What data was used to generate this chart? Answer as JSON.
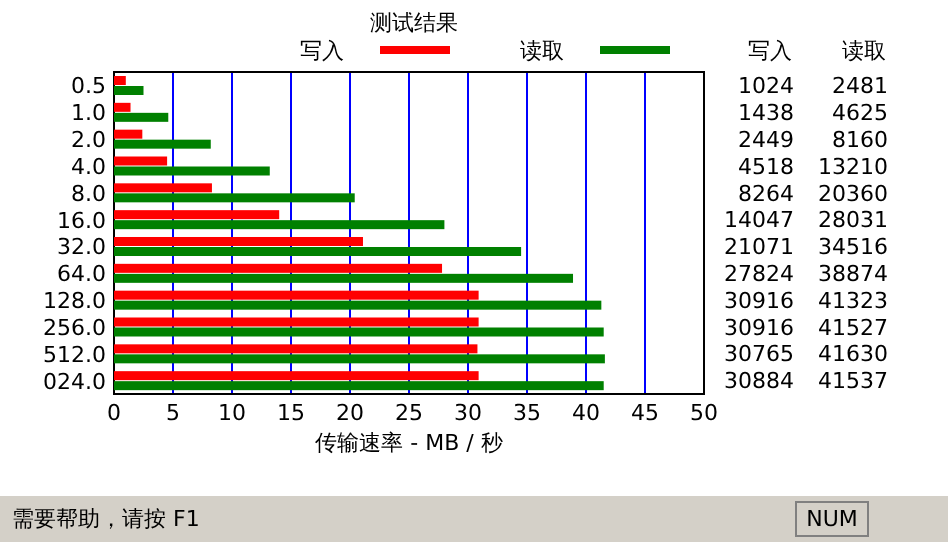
{
  "chart_data": [
    {
      "type": "bar",
      "orientation": "horizontal",
      "title": "测试结果",
      "xlabel": "传输速率 - MB / 秒",
      "categories": [
        "0.5",
        "1.0",
        "2.0",
        "4.0",
        "8.0",
        "16.0",
        "32.0",
        "64.0",
        "128.0",
        "256.0",
        "512.0",
        "024.0"
      ],
      "series": [
        {
          "name": "写入",
          "color": "#ff0000",
          "values": [
            1.0,
            1.4,
            2.4,
            4.5,
            8.3,
            14.0,
            21.1,
            27.8,
            30.9,
            30.9,
            30.8,
            30.9
          ]
        },
        {
          "name": "读取",
          "color": "#008000",
          "values": [
            2.5,
            4.6,
            8.2,
            13.2,
            20.4,
            28.0,
            34.5,
            38.9,
            41.3,
            41.5,
            41.6,
            41.5
          ]
        }
      ],
      "xlim": [
        0,
        50
      ],
      "xticks": [
        0,
        5,
        10,
        15,
        20,
        25,
        30,
        35,
        40,
        45,
        50
      ],
      "grid": "x",
      "legend": "top",
      "annotations": [
        "需要帮助，请按 F1",
        "NUM"
      ]
    },
    {
      "type": "other",
      "annotations": [
        "写入",
        "读取",
        "1024",
        "2481",
        "1438",
        "4625",
        "2449",
        "8160",
        "4518",
        "13210",
        "8264",
        "20360",
        "14047",
        "28031",
        "21071",
        "34516",
        "27824",
        "38874",
        "30916",
        "41323",
        "30916",
        "41527",
        "30765",
        "41630",
        "30884",
        "41537"
      ]
    }
  ]
}
